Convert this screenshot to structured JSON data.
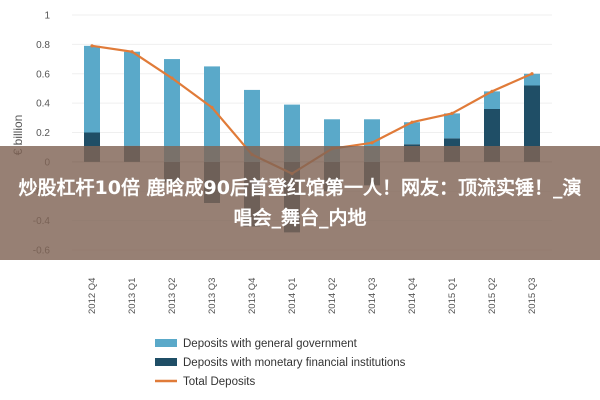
{
  "chart_data": {
    "type": "bar",
    "ylabel": "€ billion",
    "ylim": [
      -0.6,
      1.0
    ],
    "yticks": [
      1,
      0.8,
      0.6,
      0.4,
      0.2,
      0,
      -0.2,
      -0.4,
      -0.6
    ],
    "categories": [
      "2012 Q4",
      "2013 Q1",
      "2013 Q2",
      "2013 Q3",
      "2013 Q4",
      "2014 Q1",
      "2014 Q2",
      "2014 Q3",
      "2014 Q4",
      "2015 Q1",
      "2015 Q2",
      "2015 Q3"
    ],
    "series": [
      {
        "name": "Deposits with general government",
        "type": "bar",
        "color": "#5aa9c9",
        "values": [
          0.59,
          0.64,
          0.7,
          0.65,
          0.49,
          0.39,
          0.29,
          0.29,
          0.15,
          0.17,
          0.12,
          0.08
        ]
      },
      {
        "name": "Deposits with monetary financial institutions",
        "type": "bar",
        "color": "#1f4e66",
        "values": [
          0.2,
          0.11,
          -0.14,
          -0.28,
          -0.44,
          -0.48,
          -0.2,
          -0.16,
          0.12,
          0.16,
          0.36,
          0.52
        ]
      },
      {
        "name": "Total Deposits",
        "type": "line",
        "color": "#e07b39",
        "values": [
          0.79,
          0.75,
          0.57,
          0.37,
          0.05,
          -0.08,
          0.09,
          0.13,
          0.27,
          0.33,
          0.48,
          0.6
        ]
      }
    ],
    "legend": "bottom"
  },
  "overlay": {
    "text": "炒股杠杆10倍 鹿晗成90后首登红馆第一人！网友：顶流实锤！_演唱会_舞台_内地"
  }
}
